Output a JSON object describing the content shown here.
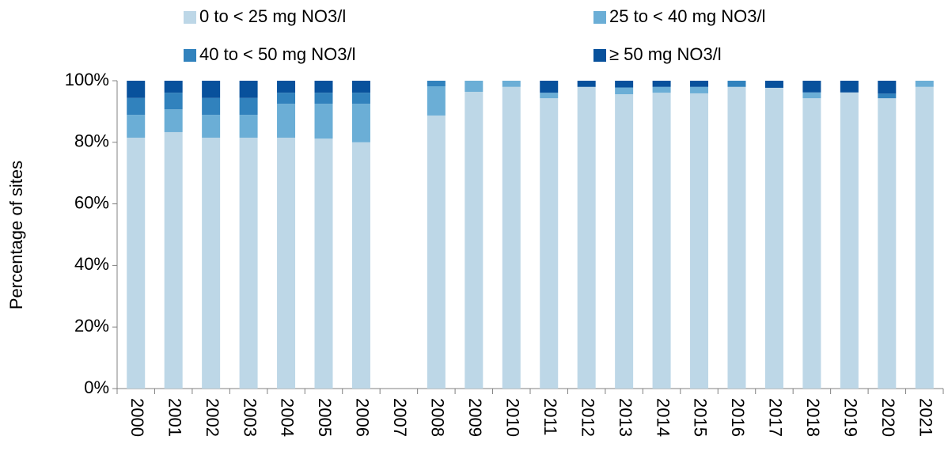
{
  "chart_data": {
    "type": "stacked_bar",
    "y_label": "Percentage of sites",
    "categories": [
      "2000",
      "2001",
      "2002",
      "2003",
      "2004",
      "2005",
      "2006",
      "2007",
      "2008",
      "2009",
      "2010",
      "2011",
      "2012",
      "2013",
      "2014",
      "2015",
      "2016",
      "2017",
      "2018",
      "2019",
      "2020",
      "2021"
    ],
    "series": [
      {
        "name": "0 to < 25 mg NO3/l",
        "color": "#bdd7e7",
        "values": [
          81.5,
          83.3,
          81.5,
          81.5,
          81.5,
          81.2,
          80,
          null,
          88.7,
          96.4,
          98,
          94.3,
          98,
          95.6,
          96.1,
          95.9,
          98,
          97.7,
          94.3,
          96.2,
          94.3,
          98
        ]
      },
      {
        "name": "25 to < 40 mg NO3/l",
        "color": "#6baed6",
        "values": [
          7.4,
          7.4,
          7.4,
          7.4,
          11,
          11.3,
          12.5,
          null,
          9.5,
          3.6,
          2,
          1.8,
          0,
          2.2,
          1.9,
          2.1,
          0,
          0,
          1.9,
          0,
          0,
          2
        ]
      },
      {
        "name": "40 to < 50 mg NO3/l",
        "color": "#3182bd",
        "values": [
          5.5,
          5.4,
          5.5,
          5.5,
          3.6,
          3.6,
          3.6,
          null,
          1.8,
          0,
          0,
          0,
          0,
          0,
          0,
          0,
          2,
          0,
          0,
          0,
          1.5,
          0
        ]
      },
      {
        "name": "≥ 50 mg NO3/l",
        "color": "#08519c",
        "values": [
          5.6,
          3.9,
          5.6,
          5.6,
          3.9,
          3.9,
          3.9,
          null,
          0,
          0,
          0,
          3.9,
          2,
          2.2,
          2,
          2,
          0,
          2.3,
          3.8,
          3.8,
          4.2,
          0
        ]
      }
    ],
    "ylim": [
      0,
      100
    ],
    "yticks": [
      {
        "value": 0,
        "label": "0%"
      },
      {
        "value": 20,
        "label": "20%"
      },
      {
        "value": 40,
        "label": "40%"
      },
      {
        "value": 60,
        "label": "60%"
      },
      {
        "value": 80,
        "label": "80%"
      },
      {
        "value": 100,
        "label": "100%"
      }
    ],
    "grid": false
  }
}
